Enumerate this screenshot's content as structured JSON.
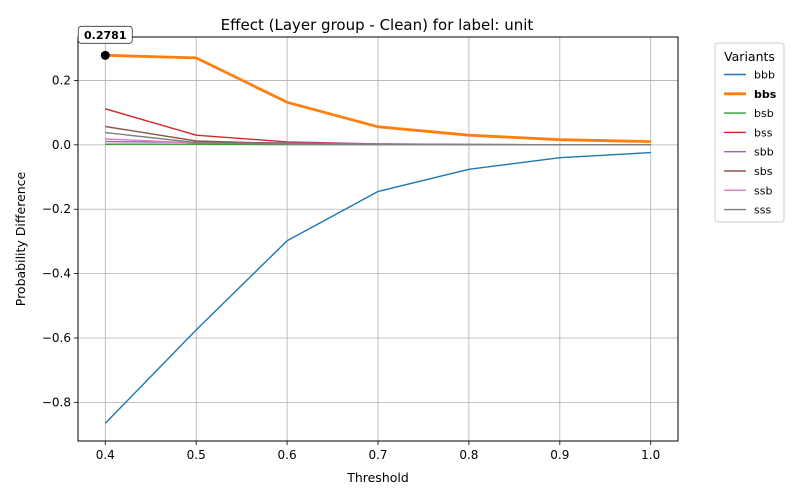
{
  "chart_data": {
    "type": "line",
    "title": "Effect (Layer group - Clean) for label: unit",
    "xlabel": "Threshold",
    "ylabel": "Probability Difference",
    "x": [
      0.4,
      0.5,
      0.6,
      0.7,
      0.8,
      0.9,
      1.0
    ],
    "xlim": [
      0.37,
      1.03
    ],
    "ylim": [
      -0.92,
      0.335
    ],
    "xticks": [
      "0.4",
      "0.5",
      "0.6",
      "0.7",
      "0.8",
      "0.9",
      "1.0"
    ],
    "yticks": [
      "−0.8",
      "−0.6",
      "−0.4",
      "−0.2",
      "0.0",
      "0.2"
    ],
    "ytick_values": [
      -0.8,
      -0.6,
      -0.4,
      -0.2,
      0.0,
      0.2
    ],
    "grid": true,
    "legend_title": "Variants",
    "legend_position": "outside-right",
    "highlight_series": "bbs",
    "annotation": {
      "text": "0.2781",
      "x": 0.4,
      "y": 0.2781
    },
    "series": [
      {
        "name": "bbb",
        "color": "#1f77b4",
        "values": [
          -0.865,
          -0.575,
          -0.298,
          -0.145,
          -0.076,
          -0.04,
          -0.024
        ]
      },
      {
        "name": "bbs",
        "color": "#ff7f0e",
        "values": [
          0.2781,
          0.27,
          0.132,
          0.056,
          0.03,
          0.016,
          0.01
        ]
      },
      {
        "name": "bsb",
        "color": "#2ca02c",
        "values": [
          0.002,
          0.002,
          0.001,
          0.001,
          0.0,
          0.0,
          0.0
        ]
      },
      {
        "name": "bss",
        "color": "#d62728",
        "values": [
          0.112,
          0.03,
          0.009,
          0.003,
          0.001,
          0.0,
          0.0
        ]
      },
      {
        "name": "sbb",
        "color": "#9467bd",
        "values": [
          0.01,
          0.008,
          0.006,
          0.003,
          0.001,
          0.0,
          0.0
        ]
      },
      {
        "name": "sbs",
        "color": "#8c564b",
        "values": [
          0.057,
          0.012,
          0.004,
          0.001,
          0.0,
          0.0,
          0.0
        ]
      },
      {
        "name": "ssb",
        "color": "#e377c2",
        "values": [
          0.018,
          0.006,
          0.003,
          0.001,
          0.0,
          0.0,
          0.0
        ]
      },
      {
        "name": "sss",
        "color": "#7f7f7f",
        "values": [
          0.038,
          0.007,
          0.002,
          0.001,
          0.0,
          0.0,
          0.0
        ]
      }
    ]
  }
}
